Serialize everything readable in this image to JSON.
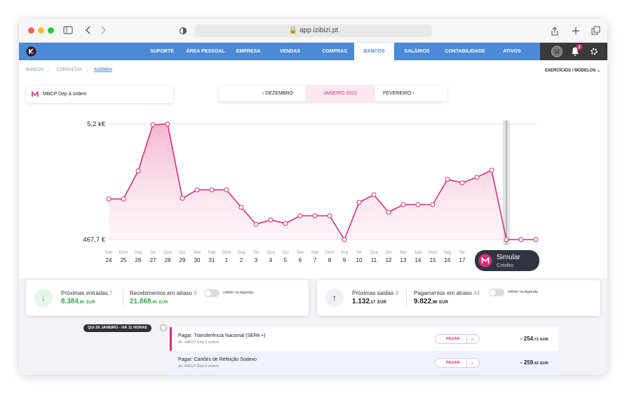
{
  "browser": {
    "url": "app.izibizi.pt"
  },
  "nav": {
    "items": [
      "SUPORTE",
      "ÁREA PESSOAL",
      "EMPRESA",
      "VENDAS",
      "COMPRAS",
      "BANCOS",
      "SALÁRIOS",
      "CONTABILIDADE",
      "ATIVOS"
    ],
    "avatar": "M",
    "notifications": 2
  },
  "breadcrumbs": [
    "BANCOS",
    "CONSULTAS",
    "AGENDA"
  ],
  "menu": "EXERCÍCIOS / MODELOS",
  "account": "MBCP Dep à ordem",
  "months": {
    "previous": "DEZEMBRO",
    "current": "JANEIRO 2023",
    "next": "FEVEREIRO"
  },
  "chart_data": {
    "type": "line",
    "color": "#d42f7c",
    "ylim": [
      467.7,
      5200
    ],
    "yticks": [
      {
        "value": 5200,
        "label": "5,2 k€"
      },
      {
        "value": 467.7,
        "label": "467,7 €"
      }
    ],
    "categories": [
      "24",
      "25",
      "26",
      "27",
      "28",
      "29",
      "30",
      "31",
      "1",
      "2",
      "3",
      "4",
      "5",
      "6",
      "7",
      "8",
      "9",
      "10",
      "11",
      "12",
      "13",
      "14",
      "15",
      "16",
      "17",
      null,
      null,
      null,
      null,
      null
    ],
    "weekdays": [
      "Sab",
      "Dom",
      "Seg",
      "Ter",
      "Qua",
      "Qui",
      "Sex",
      "Sab",
      "Dom",
      "Seg",
      "Ter",
      "Qua",
      "Qui",
      "Sex",
      "Sab",
      "Dom",
      "Seg",
      "Ter",
      "Qua",
      "Qui",
      "Sex",
      "Sab",
      "Dom",
      "Seg",
      "Ter",
      null,
      null,
      null,
      null,
      null
    ],
    "values": [
      2131,
      2131,
      3278,
      5171,
      5200,
      2160,
      2504,
      2504,
      2504,
      1787,
      1099,
      1271,
      1127,
      1443,
      1443,
      1443,
      467.7,
      1988,
      2303,
      1586,
      1902,
      1902,
      1902,
      2934,
      2791,
      3020,
      3307,
      467.7,
      467.7,
      467.7
    ]
  },
  "simulate": {
    "title": "Simular",
    "subtitle": "Crédito"
  },
  "summary": {
    "toggle_label": "refletir na Agenda",
    "incoming": {
      "label": "Próximas entradas",
      "count": 7,
      "amount": "8.384",
      "cents": ",80",
      "currency": "EUR"
    },
    "overdue_receipts": {
      "label": "Recebimentos em atraso",
      "count": 9,
      "amount": "21.868",
      "cents": ",40",
      "currency": "EUR"
    },
    "outgoing": {
      "label": "Próximas saídas",
      "count": 4,
      "amount": "1.132",
      "cents": ",17",
      "currency": "EUR"
    },
    "overdue_payments": {
      "label": "Pagamentos em atraso",
      "count": 44,
      "amount": "9.822",
      "cents": ",98",
      "currency": "EUR"
    }
  },
  "timeline": {
    "date": "QUI 26 JANEIRO - HÁ 11 HORAS",
    "items": [
      {
        "title": "Pagar: Transferência Nacional (SEPA +)",
        "from": "de: MBCP Dep à ordem",
        "action": "PAGAR",
        "amount": "- 254",
        "cents": ",72",
        "currency": "EUR"
      },
      {
        "title": "Pagar: Cartões de Refeição Sodexo",
        "from": "de: MBCP Dep à ordem",
        "action": "PAGAR",
        "amount": "- 259",
        "cents": ",42",
        "currency": "EUR"
      }
    ]
  }
}
